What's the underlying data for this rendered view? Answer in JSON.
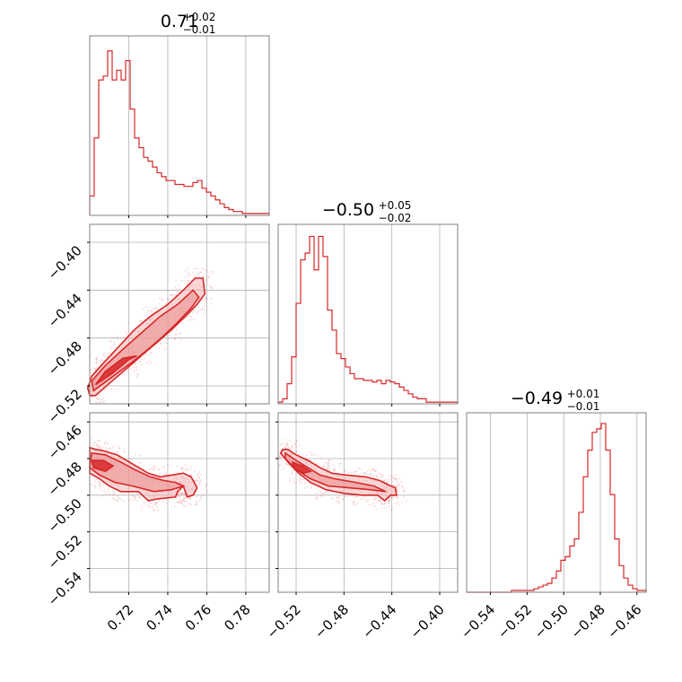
{
  "chart_data": {
    "type": "corner",
    "color": "#d62728",
    "fill_color": "#f4b6b6",
    "grid": true,
    "params": [
      {
        "title_value": "0.71",
        "title_plus": "+0.02",
        "title_minus": "−0.01",
        "range": [
          0.7,
          0.792
        ]
      },
      {
        "title_value": "−0.50",
        "title_plus": "+0.05",
        "title_minus": "−0.02",
        "range": [
          -0.535,
          -0.385
        ]
      },
      {
        "title_value": "−0.49",
        "title_plus": "+0.01",
        "title_minus": "−0.01",
        "range": [
          -0.553,
          -0.455
        ]
      }
    ],
    "x_ticks": [
      {
        "values": [
          0.72,
          0.74,
          0.76,
          0.78
        ],
        "labels": [
          "0.72",
          "0.74",
          "0.76",
          "0.78"
        ]
      },
      {
        "values": [
          -0.52,
          -0.48,
          -0.44,
          -0.4
        ],
        "labels": [
          "−0.52",
          "−0.48",
          "−0.44",
          "−0.40"
        ]
      },
      {
        "values": [
          -0.54,
          -0.52,
          -0.5,
          -0.48,
          -0.46
        ],
        "labels": [
          "−0.54",
          "−0.52",
          "−0.50",
          "−0.48",
          "−0.46"
        ]
      }
    ],
    "y_ticks": [
      null,
      {
        "values": [
          -0.4,
          -0.44,
          -0.48,
          -0.52
        ],
        "labels": [
          "−0.40",
          "−0.44",
          "−0.48",
          "−0.52"
        ]
      },
      {
        "values": [
          -0.46,
          -0.48,
          -0.5,
          -0.52,
          -0.54
        ],
        "labels": [
          "−0.46",
          "−0.48",
          "−0.50",
          "−0.52",
          "−0.54"
        ]
      }
    ],
    "histograms": [
      {
        "counts": [
          10,
          40,
          70,
          72,
          85,
          70,
          75,
          70,
          80,
          55,
          40,
          35,
          30,
          28,
          25,
          22,
          20,
          18,
          18,
          16,
          16,
          15,
          15,
          17,
          18,
          14,
          12,
          10,
          8,
          6,
          4,
          3,
          2,
          2,
          1,
          1,
          1,
          1,
          1,
          1
        ],
        "max_count": 90
      },
      {
        "counts": [
          1,
          3,
          12,
          28,
          60,
          86,
          90,
          100,
          80,
          100,
          88,
          56,
          44,
          30,
          27,
          22,
          18,
          15,
          15,
          14,
          14,
          13,
          14,
          12,
          14,
          13,
          12,
          10,
          8,
          6,
          4,
          3,
          3,
          1,
          1,
          1,
          1,
          1,
          1,
          1
        ],
        "max_count": 104
      },
      {
        "counts": [
          0,
          0,
          0,
          0,
          0,
          0,
          0,
          0,
          0,
          0,
          1,
          1,
          1,
          1,
          1,
          2,
          3,
          4,
          5,
          8,
          12,
          18,
          20,
          26,
          30,
          45,
          65,
          80,
          90,
          92,
          95,
          80,
          55,
          30,
          15,
          8,
          4,
          2,
          1,
          1
        ],
        "max_count": 98
      }
    ],
    "contours": {
      "p1_vs_p0": {
        "outer": [
          [
            0.7,
            -0.528
          ],
          [
            0.703,
            -0.528
          ],
          [
            0.71,
            -0.518
          ],
          [
            0.72,
            -0.504
          ],
          [
            0.727,
            -0.494
          ],
          [
            0.735,
            -0.483
          ],
          [
            0.742,
            -0.473
          ],
          [
            0.749,
            -0.462
          ],
          [
            0.755,
            -0.452
          ],
          [
            0.759,
            -0.443
          ],
          [
            0.758,
            -0.43
          ],
          [
            0.754,
            -0.43
          ],
          [
            0.748,
            -0.44
          ],
          [
            0.74,
            -0.452
          ],
          [
            0.731,
            -0.462
          ],
          [
            0.723,
            -0.473
          ],
          [
            0.715,
            -0.487
          ],
          [
            0.707,
            -0.501
          ],
          [
            0.701,
            -0.512
          ],
          [
            0.699,
            -0.522
          ]
        ],
        "middle": [
          [
            0.702,
            -0.524
          ],
          [
            0.712,
            -0.512
          ],
          [
            0.722,
            -0.5
          ],
          [
            0.731,
            -0.488
          ],
          [
            0.738,
            -0.478
          ],
          [
            0.745,
            -0.467
          ],
          [
            0.752,
            -0.455
          ],
          [
            0.756,
            -0.446
          ],
          [
            0.753,
            -0.44
          ],
          [
            0.745,
            -0.452
          ],
          [
            0.736,
            -0.462
          ],
          [
            0.727,
            -0.475
          ],
          [
            0.718,
            -0.488
          ],
          [
            0.708,
            -0.503
          ],
          [
            0.701,
            -0.516
          ]
        ],
        "inner": [
          [
            0.703,
            -0.519
          ],
          [
            0.712,
            -0.509
          ],
          [
            0.72,
            -0.498
          ],
          [
            0.724,
            -0.495
          ],
          [
            0.717,
            -0.497
          ],
          [
            0.708,
            -0.508
          ]
        ]
      },
      "p2_vs_p0": {
        "outer": [
          [
            0.7,
            -0.474
          ],
          [
            0.703,
            -0.475
          ],
          [
            0.708,
            -0.476
          ],
          [
            0.714,
            -0.478
          ],
          [
            0.722,
            -0.483
          ],
          [
            0.73,
            -0.488
          ],
          [
            0.736,
            -0.49
          ],
          [
            0.742,
            -0.489
          ],
          [
            0.748,
            -0.488
          ],
          [
            0.752,
            -0.49
          ],
          [
            0.755,
            -0.496
          ],
          [
            0.753,
            -0.5
          ],
          [
            0.75,
            -0.501
          ],
          [
            0.748,
            -0.495
          ],
          [
            0.745,
            -0.498
          ],
          [
            0.744,
            -0.501
          ],
          [
            0.735,
            -0.502
          ],
          [
            0.73,
            -0.503
          ],
          [
            0.725,
            -0.498
          ],
          [
            0.716,
            -0.498
          ],
          [
            0.71,
            -0.495
          ],
          [
            0.705,
            -0.491
          ],
          [
            0.7,
            -0.488
          ],
          [
            0.7,
            -0.478
          ]
        ],
        "middle": [
          [
            0.701,
            -0.477
          ],
          [
            0.708,
            -0.478
          ],
          [
            0.716,
            -0.482
          ],
          [
            0.723,
            -0.486
          ],
          [
            0.731,
            -0.49
          ],
          [
            0.738,
            -0.492
          ],
          [
            0.744,
            -0.493
          ],
          [
            0.748,
            -0.495
          ],
          [
            0.742,
            -0.497
          ],
          [
            0.733,
            -0.498
          ],
          [
            0.722,
            -0.495
          ],
          [
            0.713,
            -0.493
          ],
          [
            0.705,
            -0.489
          ],
          [
            0.7,
            -0.485
          ]
        ],
        "inner": [
          [
            0.701,
            -0.481
          ],
          [
            0.707,
            -0.481
          ],
          [
            0.712,
            -0.484
          ],
          [
            0.708,
            -0.487
          ],
          [
            0.702,
            -0.485
          ]
        ]
      },
      "p2_vs_p1": {
        "outer": [
          [
            -0.531,
            -0.475
          ],
          [
            -0.527,
            -0.475
          ],
          [
            -0.52,
            -0.478
          ],
          [
            -0.51,
            -0.481
          ],
          [
            -0.5,
            -0.485
          ],
          [
            -0.49,
            -0.488
          ],
          [
            -0.478,
            -0.489
          ],
          [
            -0.462,
            -0.49
          ],
          [
            -0.45,
            -0.492
          ],
          [
            -0.444,
            -0.494
          ],
          [
            -0.437,
            -0.496
          ],
          [
            -0.436,
            -0.5
          ],
          [
            -0.441,
            -0.5
          ],
          [
            -0.446,
            -0.503
          ],
          [
            -0.452,
            -0.5
          ],
          [
            -0.465,
            -0.5
          ],
          [
            -0.48,
            -0.499
          ],
          [
            -0.495,
            -0.497
          ],
          [
            -0.508,
            -0.493
          ],
          [
            -0.518,
            -0.488
          ],
          [
            -0.528,
            -0.481
          ],
          [
            -0.533,
            -0.477
          ]
        ],
        "middle": [
          [
            -0.529,
            -0.477
          ],
          [
            -0.52,
            -0.481
          ],
          [
            -0.51,
            -0.485
          ],
          [
            -0.5,
            -0.489
          ],
          [
            -0.488,
            -0.491
          ],
          [
            -0.47,
            -0.493
          ],
          [
            -0.455,
            -0.495
          ],
          [
            -0.445,
            -0.498
          ],
          [
            -0.458,
            -0.497
          ],
          [
            -0.475,
            -0.496
          ],
          [
            -0.493,
            -0.495
          ],
          [
            -0.508,
            -0.491
          ],
          [
            -0.52,
            -0.486
          ],
          [
            -0.529,
            -0.48
          ]
        ],
        "inner": [
          [
            -0.523,
            -0.482
          ],
          [
            -0.515,
            -0.484
          ],
          [
            -0.508,
            -0.487
          ],
          [
            -0.514,
            -0.488
          ],
          [
            -0.522,
            -0.485
          ]
        ]
      }
    }
  }
}
